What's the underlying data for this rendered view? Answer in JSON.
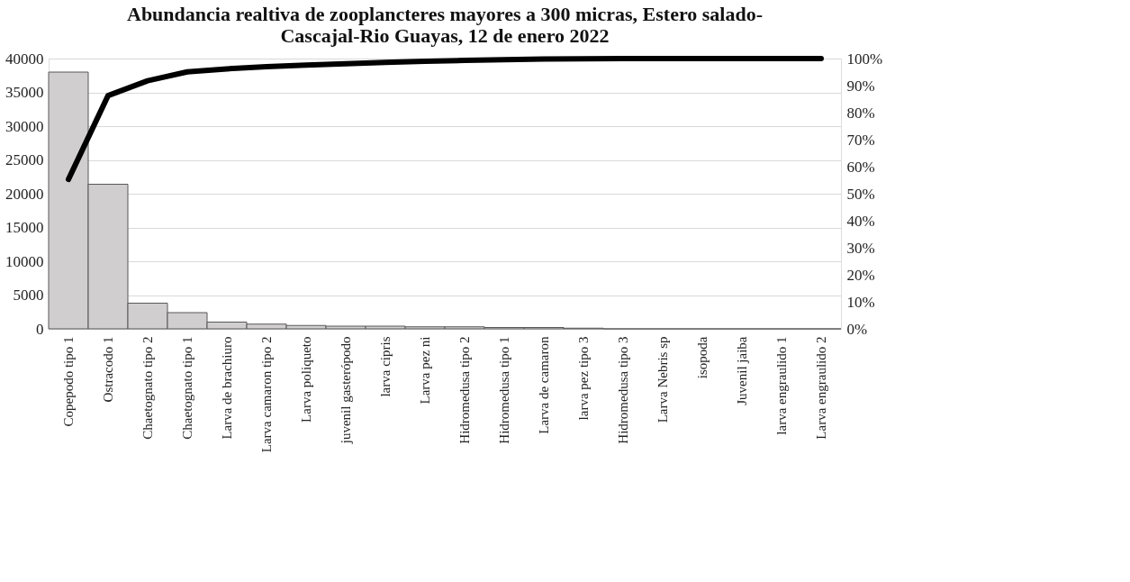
{
  "chart_data": {
    "type": "bar",
    "title": "Abundancia realtiva de zooplancteres mayores a 300 micras, Estero salado-Cascajal-Rio Guayas, 12 de enero 2022",
    "categories": [
      "Copepodo tipo 1",
      "Ostracodo 1",
      "Chaetognato tipo 2",
      "Chaetognato tipo 1",
      "Larva de brachiuro",
      "Larva camaron tipo 2",
      "Larva poliqueto",
      "juvenil gasterópodo",
      "larva cipris",
      "Larva pez ni",
      "Hidromedusa tipo 2",
      "Hidromedusa tipo 1",
      "Larva de camaron",
      "larva pez tipo 3",
      "Hidromedusa tipo 3",
      "Larva Nebris sp",
      "isopoda",
      "Juvenil jaiba",
      "larva engraulido 1",
      "Larva engraulido 2"
    ],
    "series": [
      {
        "color": "#d0cece",
        "values": [
          38000,
          21400,
          3800,
          2400,
          1000,
          700,
          500,
          400,
          400,
          300,
          300,
          200,
          200,
          100,
          0,
          0,
          0,
          0,
          0,
          0
        ]
      },
      {
        "type": "line",
        "axis": "y2",
        "color": "#000000",
        "values": [
          55.3,
          86.3,
          91.8,
          95.1,
          96.2,
          97.0,
          97.6,
          98.1,
          98.6,
          99.0,
          99.3,
          99.6,
          99.8,
          99.9,
          100,
          100,
          100,
          100,
          100,
          100
        ]
      }
    ],
    "ylim": [
      0,
      40000
    ],
    "yticks": [
      0,
      5000,
      10000,
      15000,
      20000,
      25000,
      30000,
      35000,
      40000
    ],
    "y2lim": [
      0,
      100
    ],
    "y2ticks": [
      {
        "value": 0,
        "label": "0%"
      },
      {
        "value": 10,
        "label": "10%"
      },
      {
        "value": 20,
        "label": "20%"
      },
      {
        "value": 30,
        "label": "30%"
      },
      {
        "value": 40,
        "label": "40%"
      },
      {
        "value": 50,
        "label": "50%"
      },
      {
        "value": 60,
        "label": "60%"
      },
      {
        "value": 70,
        "label": "70%"
      },
      {
        "value": 80,
        "label": "80%"
      },
      {
        "value": 90,
        "label": "90%"
      },
      {
        "value": 100,
        "label": "100%"
      }
    ],
    "grid": "y"
  }
}
